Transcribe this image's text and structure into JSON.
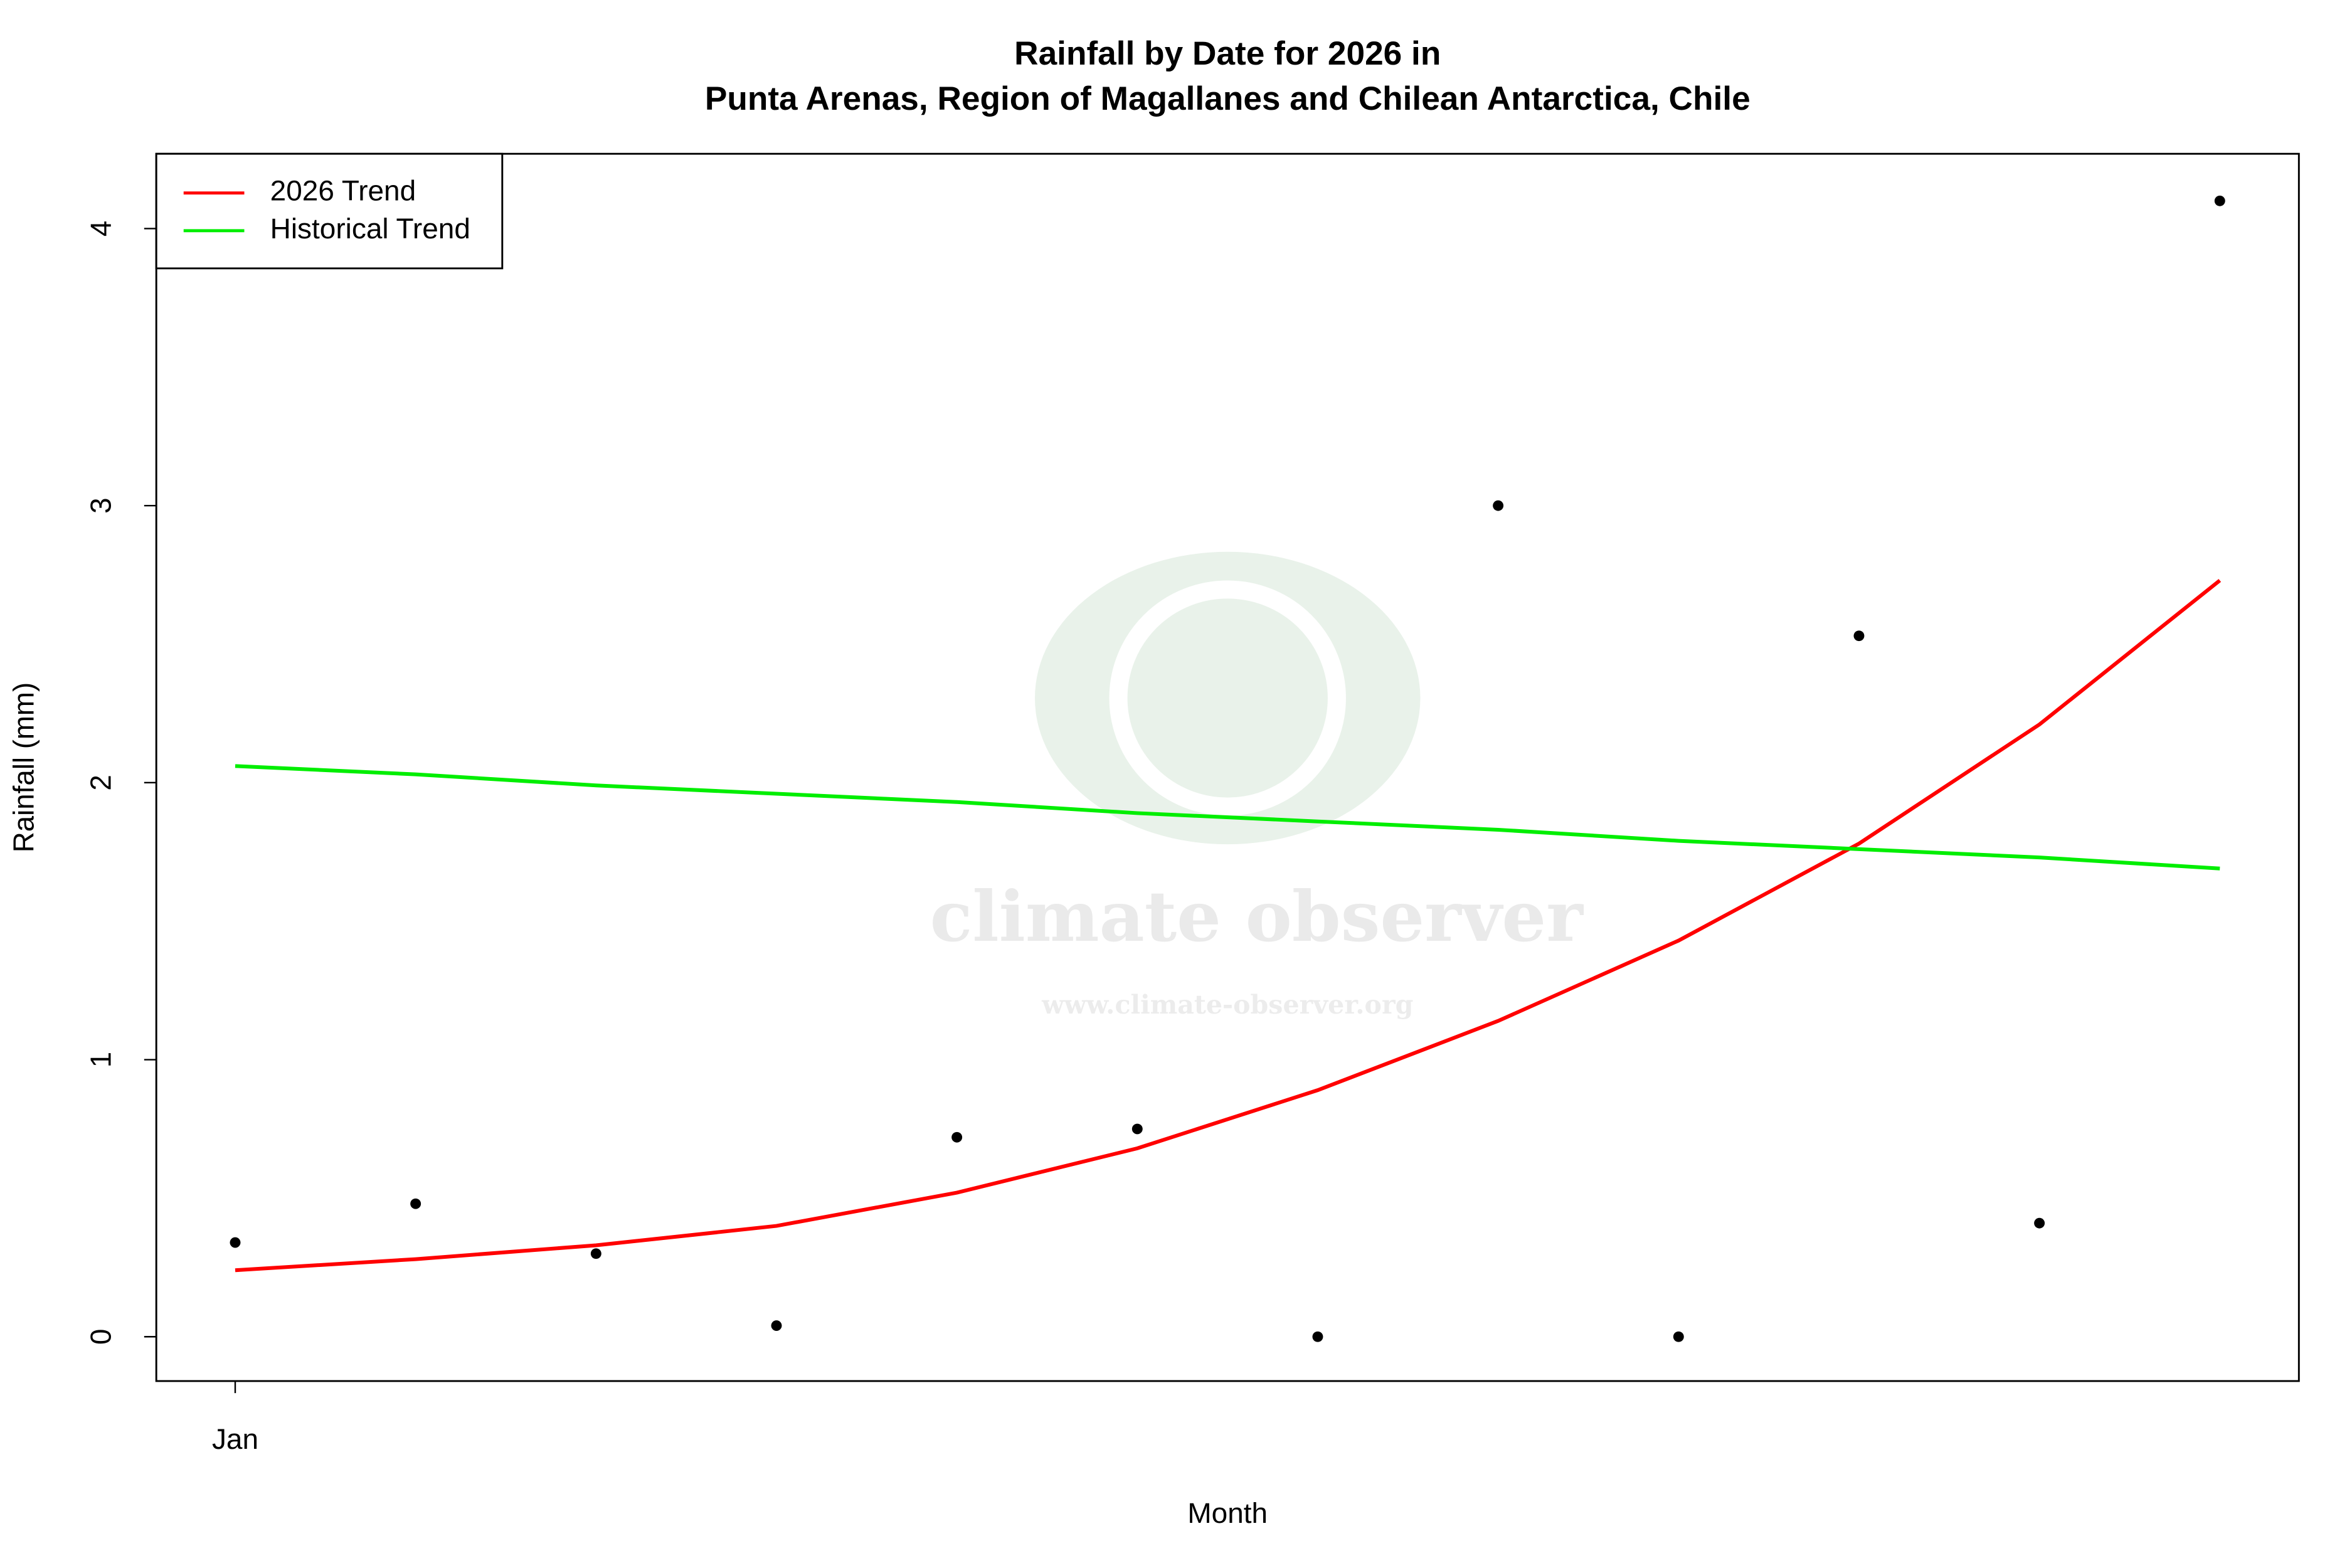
{
  "chart_data": {
    "type": "line",
    "title": "Rainfall by Date for 2026 in",
    "subtitle": "Punta Arenas, Region of Magallanes and Chilean Antarctica, Chile",
    "x_label": "Month",
    "y_label": "Rainfall (mm)",
    "watermark": "climate observer",
    "watermark_url": "www.climate-observer.org",
    "categories": [
      "Jan",
      null,
      null,
      null,
      null,
      null,
      null,
      null,
      null,
      null,
      null,
      null
    ],
    "values": [
      0.34,
      0.48,
      0.3,
      0.04,
      0.72,
      0.75,
      0.0,
      3.0,
      0.0,
      2.53,
      0.41,
      4.1
    ],
    "color": "#000000",
    "series": [
      {
        "name": "2026 Trend",
        "color": "#ff0000",
        "values": [
          0.24,
          0.28,
          0.33,
          0.4,
          0.52,
          0.68,
          0.89,
          1.14,
          1.43,
          1.78,
          2.21,
          2.73
        ]
      },
      {
        "name": "Historical Trend",
        "color": "#00ee00",
        "values": [
          2.06,
          2.03,
          1.99,
          1.96,
          1.93,
          1.89,
          1.86,
          1.83,
          1.79,
          1.76,
          1.73,
          1.69
        ]
      }
    ],
    "ylim": [
      -0.16,
      4.27
    ],
    "yticks": [
      0,
      1,
      2,
      3,
      4
    ],
    "legend": "top-left"
  }
}
